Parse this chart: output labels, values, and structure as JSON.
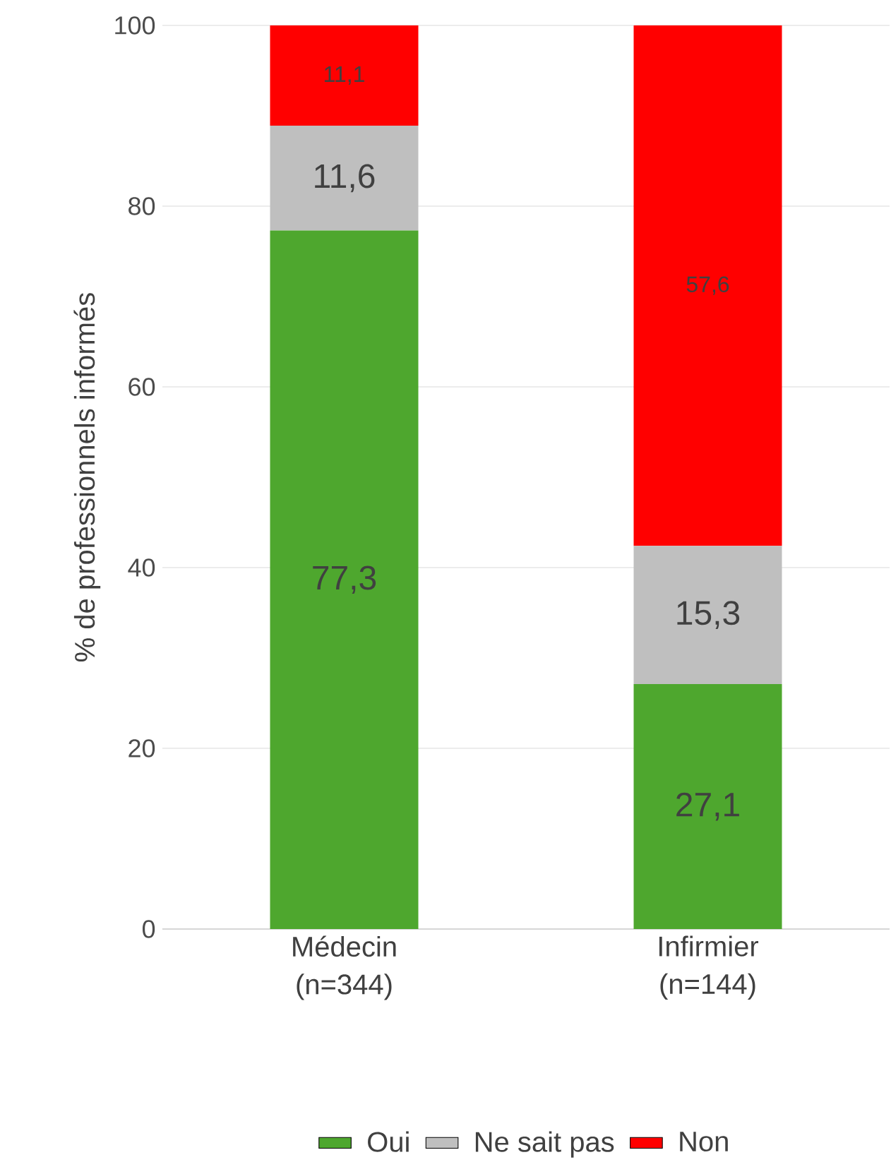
{
  "chart_data": {
    "type": "bar",
    "stacked": true,
    "ylabel": "% de professionnels informés",
    "categories": [
      "Médecin (n=344)",
      "Infirmier (n=144)"
    ],
    "series": [
      {
        "name": "Oui",
        "color": "#4ea72e",
        "values": [
          77.3,
          27.1
        ],
        "value_labels": [
          "77,3",
          "27,1"
        ]
      },
      {
        "name": "Ne sait pas",
        "color": "#bfbfbf",
        "values": [
          11.6,
          15.3
        ],
        "value_labels": [
          "11,6",
          "15,3"
        ]
      },
      {
        "name": "Non",
        "color": "#ff0000",
        "values": [
          11.1,
          57.6
        ],
        "value_labels": [
          "11,1",
          "57,6"
        ]
      }
    ],
    "ylim": [
      0,
      100
    ],
    "yticks": [
      0,
      20,
      40,
      60,
      80,
      100
    ],
    "grid": "y",
    "legend": "bottom"
  }
}
